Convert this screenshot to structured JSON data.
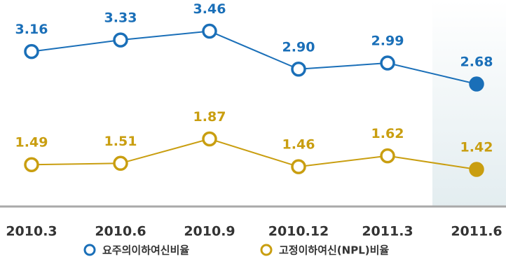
{
  "chart_data": {
    "type": "line",
    "categories": [
      "2010.3",
      "2010.6",
      "2010.9",
      "2010.12",
      "2011.3",
      "2011.6"
    ],
    "series": [
      {
        "name": "요주의이하여신비율",
        "color": "#1a6fb8",
        "values": [
          3.16,
          3.33,
          3.46,
          2.9,
          2.99,
          2.68
        ],
        "value_labels": [
          "3.16",
          "3.33",
          "3.46",
          "2.90",
          "2.99",
          "2.68"
        ]
      },
      {
        "name": "고정이하여신(NPL)비율",
        "color": "#c99e10",
        "values": [
          1.49,
          1.51,
          1.87,
          1.46,
          1.62,
          1.42
        ]
      }
    ],
    "ylim": [
      1.1,
      3.6
    ]
  }
}
